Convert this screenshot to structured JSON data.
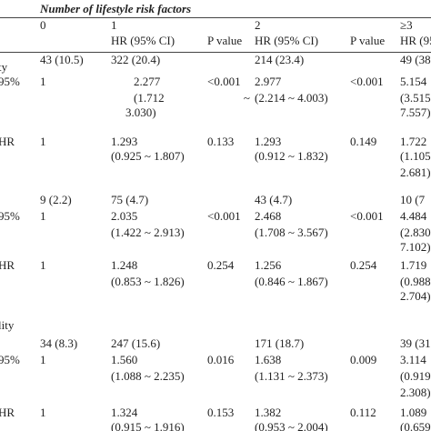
{
  "header": {
    "title": "Number of lifestyle risk factors",
    "numbers": [
      null,
      "0",
      "1",
      null,
      "2",
      null,
      "≥3"
    ],
    "sub": [
      null,
      null,
      "HR (95% CI)",
      "P value",
      "HR (95% CI)",
      "P value",
      "HR (95"
    ]
  },
  "rows": [
    [
      null,
      "43 (10.5)",
      "322 (20.4)",
      null,
      "214 (23.4)",
      null,
      "49 (38"
    ],
    [
      "ty",
      null,
      null,
      null,
      null,
      null,
      null
    ],
    [
      "95%",
      "1",
      "2.277",
      "<0.001",
      "2.977",
      "<0.001",
      "5.154"
    ],
    [
      null,
      null,
      "(1.712 ~",
      null,
      "(2.214 ~ 4.003)",
      null,
      "(3.515"
    ],
    [
      null,
      null,
      "3.030)",
      null,
      null,
      null,
      "7.557)"
    ],
    [
      "HR",
      "1",
      "1.293",
      "0.133",
      "1.293",
      "0.149",
      "1.722"
    ],
    [
      null,
      null,
      "(0.925 ~ 1.807)",
      null,
      "(0.912 ~ 1.832)",
      null,
      "(1.105"
    ],
    [
      null,
      null,
      null,
      null,
      null,
      null,
      "2.681)"
    ],
    [
      null,
      "9 (2.2)",
      "75 (4.7)",
      null,
      "43 (4.7)",
      null,
      "10 (7"
    ],
    [
      "95%",
      "1",
      "2.035",
      "<0.001",
      "2.468",
      "<0.001",
      "4.484"
    ],
    [
      null,
      null,
      "(1.422 ~ 2.913)",
      null,
      "(1.708 ~ 3.567)",
      null,
      "(2.830"
    ],
    [
      null,
      null,
      null,
      null,
      null,
      null,
      "7.102)"
    ],
    [
      "HR",
      "1",
      "1.248",
      "0.254",
      "1.256",
      "0.254",
      "1.719"
    ],
    [
      null,
      null,
      "(0.853 ~ 1.826)",
      null,
      "(0.846 ~ 1.867)",
      null,
      "(0.988"
    ],
    [
      null,
      null,
      null,
      null,
      null,
      null,
      "2.704)"
    ],
    [
      "lity",
      null,
      null,
      null,
      null,
      null,
      null
    ],
    [
      null,
      "34 (8.3)",
      "247 (15.6)",
      null,
      "171 (18.7)",
      null,
      "39 (31"
    ],
    [
      "95%",
      "1",
      "1.560",
      "0.016",
      "1.638",
      "0.009",
      "3.114"
    ],
    [
      null,
      null,
      "(1.088 ~ 2.235)",
      null,
      "(1.131 ~ 2.373)",
      null,
      "(0.919"
    ],
    [
      null,
      null,
      null,
      null,
      null,
      null,
      "2.308)"
    ],
    [
      "HR",
      "1",
      "1.324",
      "0.153",
      "1.382",
      "0.112",
      "1.089"
    ],
    [
      null,
      null,
      "(0.915 ~ 1.916)",
      null,
      "(0.953 ~ 2.004)",
      null,
      "(0.659"
    ]
  ]
}
